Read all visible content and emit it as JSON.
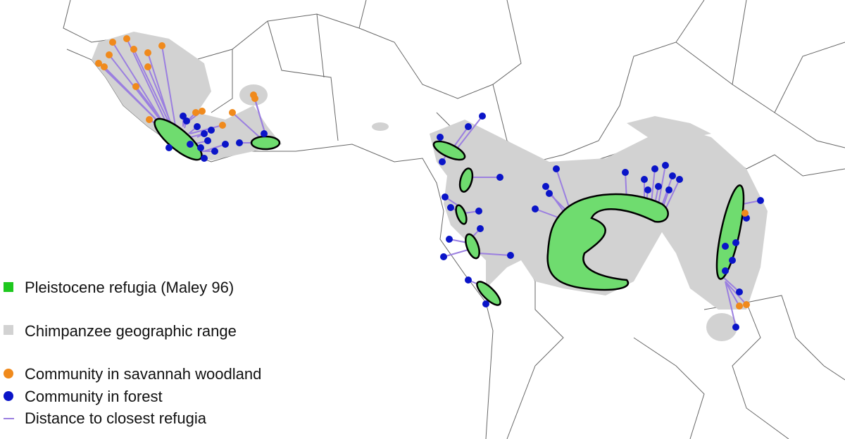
{
  "legend": {
    "items": [
      {
        "label": "Pleistocene refugia (Maley 96)"
      },
      {
        "label": "Chimpanzee geographic range"
      },
      {
        "label": "Community in savannah woodland"
      },
      {
        "label": "Community in forest"
      },
      {
        "label": "Distance to closest refugia"
      }
    ]
  }
}
